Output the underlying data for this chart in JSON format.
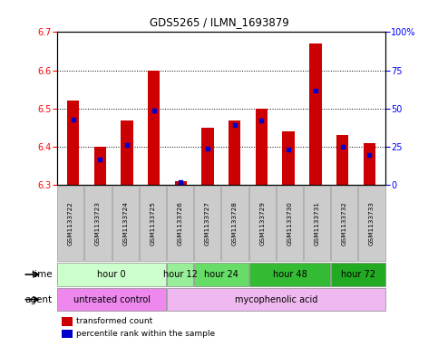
{
  "title": "GDS5265 / ILMN_1693879",
  "samples": [
    "GSM1133722",
    "GSM1133723",
    "GSM1133724",
    "GSM1133725",
    "GSM1133726",
    "GSM1133727",
    "GSM1133728",
    "GSM1133729",
    "GSM1133730",
    "GSM1133731",
    "GSM1133732",
    "GSM1133733"
  ],
  "transformed_count": [
    6.52,
    6.4,
    6.47,
    6.6,
    6.31,
    6.45,
    6.47,
    6.5,
    6.44,
    6.67,
    6.43,
    6.41
  ],
  "percentile_rank": [
    43,
    17,
    26,
    49,
    2,
    24,
    39,
    42,
    23,
    62,
    25,
    20
  ],
  "bar_bottom": 6.3,
  "ylim": [
    6.3,
    6.7
  ],
  "y2lim": [
    0,
    100
  ],
  "yticks": [
    6.3,
    6.4,
    6.5,
    6.6,
    6.7
  ],
  "y2ticks": [
    0,
    25,
    50,
    75,
    100
  ],
  "bar_color": "#cc0000",
  "percentile_color": "#0000cc",
  "time_groups": [
    {
      "label": "hour 0",
      "start": 0,
      "end": 3,
      "color": "#ccffcc"
    },
    {
      "label": "hour 12",
      "start": 4,
      "end": 4,
      "color": "#99ee99"
    },
    {
      "label": "hour 24",
      "start": 5,
      "end": 6,
      "color": "#66dd66"
    },
    {
      "label": "hour 48",
      "start": 7,
      "end": 9,
      "color": "#33bb33"
    },
    {
      "label": "hour 72",
      "start": 10,
      "end": 11,
      "color": "#22aa22"
    }
  ],
  "agent_groups": [
    {
      "label": "untreated control",
      "start": 0,
      "end": 3,
      "color": "#ee88ee"
    },
    {
      "label": "mycophenolic acid",
      "start": 4,
      "end": 11,
      "color": "#f0b8f0"
    }
  ],
  "legend_bar_color": "#cc0000",
  "legend_dot_color": "#0000cc",
  "bar_width": 0.45,
  "sample_bg_color": "#cccccc",
  "plot_bg_color": "#ffffff"
}
